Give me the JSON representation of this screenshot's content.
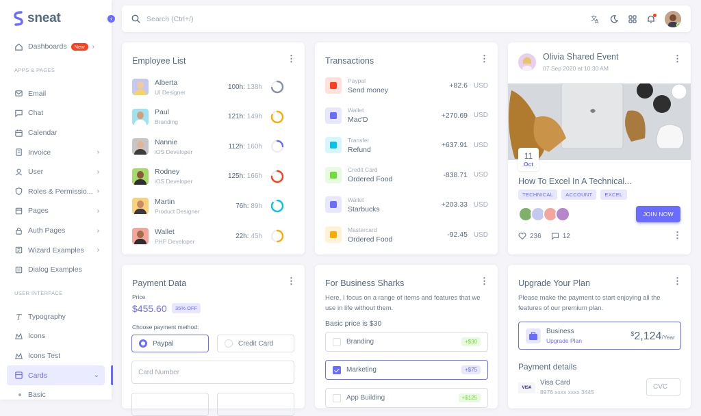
{
  "brand": {
    "name": "sneat",
    "color": "#696cff"
  },
  "search": {
    "placeholder": "Search (Ctrl+/)"
  },
  "sidebar": {
    "dashboards": {
      "label": "Dashboards",
      "badge": "New"
    },
    "section_apps": "APPS & PAGES",
    "apps": [
      {
        "label": "Email",
        "icon": "mail-icon",
        "chevron": false
      },
      {
        "label": "Chat",
        "icon": "chat-icon",
        "chevron": false
      },
      {
        "label": "Calendar",
        "icon": "calendar-icon",
        "chevron": false
      },
      {
        "label": "Invoice",
        "icon": "invoice-icon",
        "chevron": true
      },
      {
        "label": "User",
        "icon": "user-icon",
        "chevron": true
      },
      {
        "label": "Roles & Permissio...",
        "icon": "shield-icon",
        "chevron": true
      },
      {
        "label": "Pages",
        "icon": "pages-icon",
        "chevron": true
      },
      {
        "label": "Auth Pages",
        "icon": "lock-icon",
        "chevron": true
      },
      {
        "label": "Wizard Examples",
        "icon": "wizard-icon",
        "chevron": true
      },
      {
        "label": "Dialog Examples",
        "icon": "dialog-icon",
        "chevron": false
      }
    ],
    "section_ui": "USER INTERFACE",
    "ui": [
      {
        "label": "Typography",
        "icon": "typography-icon"
      },
      {
        "label": "Icons",
        "icon": "icons-icon"
      },
      {
        "label": "Icons Test",
        "icon": "icons-test-icon"
      }
    ],
    "cards": {
      "label": "Cards",
      "icon": "cards-icon"
    },
    "basic": {
      "label": "Basic"
    }
  },
  "employee_list": {
    "title": "Employee List",
    "rows": [
      {
        "name": "Alberta",
        "role": "UI Designer",
        "done": "100h:",
        "total": "138h",
        "progress": 0.72,
        "color": "#8592a3",
        "bg": "#c4c9f0",
        "skin": "#f2c9a0",
        "shirt": "#f6d365"
      },
      {
        "name": "Paul",
        "role": "Branding",
        "done": "121h:",
        "total": "149h",
        "progress": 0.81,
        "color": "#ffab00",
        "bg": "#9fe3f2",
        "skin": "#d59f7b",
        "shirt": "#ffffff"
      },
      {
        "name": "Nannie",
        "role": "iOS Developer",
        "done": "112h:",
        "total": "160h",
        "progress": 0.25,
        "color": "#696cff",
        "bg": "#c6c6c6",
        "skin": "#e0b597",
        "shirt": "#3d3d3d"
      },
      {
        "name": "Rodney",
        "role": "iOS Developer",
        "done": "125h:",
        "total": "166h",
        "progress": 0.75,
        "color": "#ff3e1d",
        "bg": "#a6d96a",
        "skin": "#8a5a3c",
        "shirt": "#2f2f2f"
      },
      {
        "name": "Martin",
        "role": "Product Designer",
        "done": "76h:",
        "total": "89h",
        "progress": 0.85,
        "color": "#03c3ec",
        "bg": "#fbd27b",
        "skin": "#c98d66",
        "shirt": "#3a3a3a"
      },
      {
        "name": "Wallet",
        "role": "PHP Developer",
        "done": "22h:",
        "total": "45h",
        "progress": 0.49,
        "color": "#ffab00",
        "bg": "#f4a59c",
        "skin": "#a56d4b",
        "shirt": "#2d2d2d"
      }
    ]
  },
  "transactions": {
    "title": "Transactions",
    "rows": [
      {
        "type": "Paypal",
        "desc": "Send money",
        "amount": "+82.6",
        "currency": "USD",
        "bg": "#ffe0db",
        "fg": "#ff3e1d"
      },
      {
        "type": "Wallet",
        "desc": "Mac'D",
        "amount": "+270.69",
        "currency": "USD",
        "bg": "#e7e7ff",
        "fg": "#696cff"
      },
      {
        "type": "Transfer",
        "desc": "Refund",
        "amount": "+637.91",
        "currency": "USD",
        "bg": "#d7f5fc",
        "fg": "#03c3ec"
      },
      {
        "type": "Credit Card",
        "desc": "Ordered Food",
        "amount": "-838.71",
        "currency": "USD",
        "bg": "#e8fadf",
        "fg": "#71dd37"
      },
      {
        "type": "Wallet",
        "desc": "Starbucks",
        "amount": "+203.33",
        "currency": "USD",
        "bg": "#e7e7ff",
        "fg": "#696cff"
      },
      {
        "type": "Mastercard",
        "desc": "Ordered Food",
        "amount": "-92.45",
        "currency": "USD",
        "bg": "#fff2d6",
        "fg": "#ffab00"
      }
    ]
  },
  "event": {
    "title": "Olivia Shared Event",
    "date": "07 Sep 2020 at 10:30 AM",
    "day": "11",
    "month": "Oct",
    "course": "How To Excel In A Technical...",
    "tags": [
      "TECHNICAL",
      "ACCOUNT",
      "EXCEL"
    ],
    "join": "JOIN NOW",
    "likes": "236",
    "comments": "12"
  },
  "payment": {
    "title": "Payment Data",
    "price_label": "Price",
    "price": "$455.60",
    "discount": "35% OFF",
    "choose": "Choose payment method:",
    "opt_paypal": "Paypal",
    "opt_card": "Credit Card",
    "card_number": "Card Number"
  },
  "business": {
    "title": "For Business Sharks",
    "desc": "Here, I focus on a range of items and features that we use in life without them.",
    "basic": "Basic price is $30",
    "options": [
      {
        "label": "Branding",
        "price": "+$30",
        "checked": false,
        "bg": "#e8fadf",
        "fg": "#71dd37"
      },
      {
        "label": "Marketing",
        "price": "+$75",
        "checked": true,
        "bg": "#e7e7ff",
        "fg": "#696cff"
      },
      {
        "label": "App Building",
        "price": "+$125",
        "checked": false,
        "bg": "#e8fadf",
        "fg": "#71dd37"
      }
    ]
  },
  "upgrade": {
    "title": "Upgrade Your Plan",
    "desc": "Please make the payment to start enjoying all the features of our premium plan.",
    "plan": "Business",
    "plan_link": "Upgrade Plan",
    "currency": "$",
    "amount": "2,124",
    "period": "/Year",
    "details": "Payment details",
    "visa_logo": "VISA",
    "card_name": "Visa Card",
    "card_number": "8976 xxxx xxxx 3445",
    "cvc": "CVC"
  }
}
